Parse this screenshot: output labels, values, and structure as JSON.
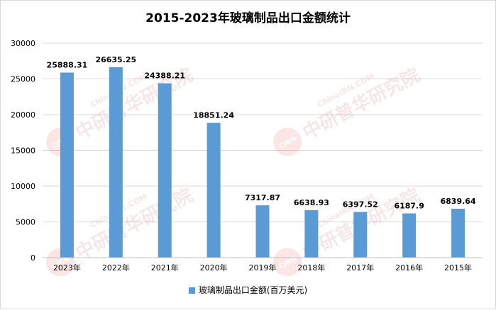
{
  "chart_data": {
    "type": "bar",
    "title": "2015-2023年玻璃制品出口金额统计",
    "categories": [
      "2023年",
      "2022年",
      "2021年",
      "2020年",
      "2019年",
      "2018年",
      "2017年",
      "2016年",
      "2015年"
    ],
    "series": [
      {
        "name": "玻璃制品出口金额(百万美元)",
        "values": [
          25888.31,
          26635.25,
          24388.21,
          18851.24,
          7317.87,
          6638.93,
          6397.52,
          6187.9,
          6839.64
        ],
        "color": "#5b9bd5"
      }
    ],
    "ylim": [
      0,
      30000
    ],
    "yticks": [
      0,
      5000,
      10000,
      15000,
      20000,
      25000,
      30000
    ],
    "grid": true,
    "legend_position": "bottom",
    "data_labels": true
  },
  "watermark": {
    "text": "ChinaIRN.COM",
    "brand": "中研普华研究院",
    "logo": "CIRN"
  }
}
